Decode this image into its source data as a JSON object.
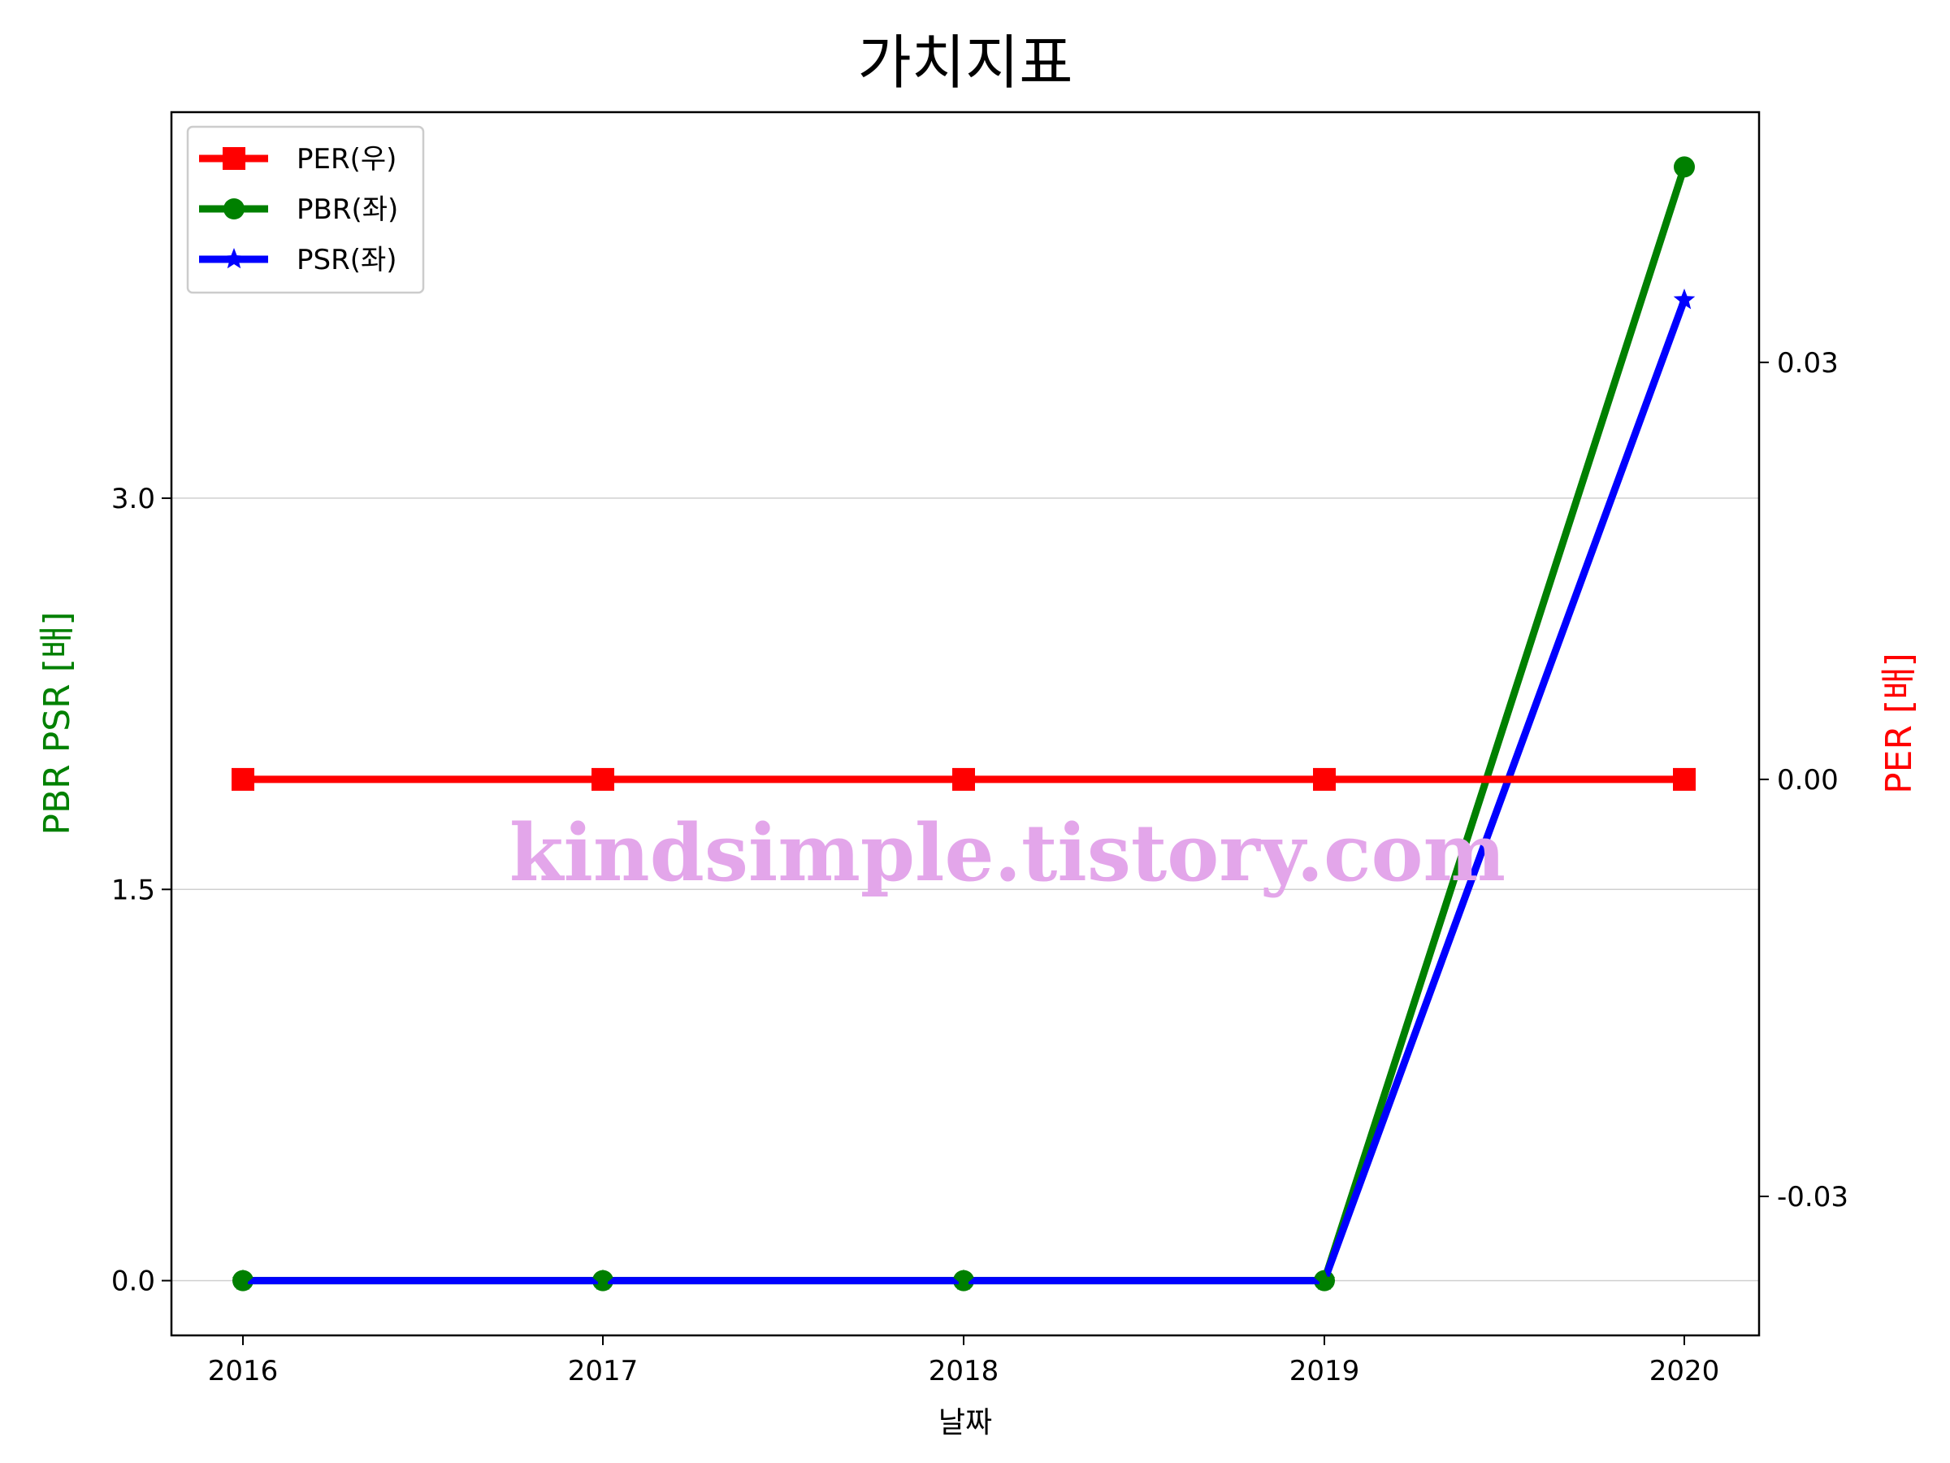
{
  "chart_data": {
    "type": "line",
    "title": "가치지표",
    "xlabel": "날짜",
    "ylabel_left": "PBR PSR [배]",
    "ylabel_right": "PER [배]",
    "categories": [
      "2016",
      "2017",
      "2018",
      "2019",
      "2020"
    ],
    "left_axis": {
      "ylim": [
        -0.21,
        4.48
      ],
      "ticks": [
        0.0,
        1.5,
        3.0
      ],
      "tick_labels": [
        "0.0",
        "1.5",
        "3.0"
      ],
      "label_color": "#008000"
    },
    "right_axis": {
      "ylim": [
        -0.04,
        0.048
      ],
      "ticks": [
        -0.03,
        0.0,
        0.03
      ],
      "tick_labels": [
        "-0.03",
        "0.00",
        "0.03"
      ],
      "label_color": "#ff0000"
    },
    "grid": "horizontal (left axis)",
    "legend_position": "upper-left",
    "series": [
      {
        "name": "PER(우)",
        "axis": "right",
        "color": "#ff0000",
        "marker": "square",
        "values": [
          0,
          0,
          0,
          0,
          0
        ]
      },
      {
        "name": "PBR(좌)",
        "axis": "left",
        "color": "#008000",
        "marker": "circle",
        "values": [
          0,
          0,
          0,
          0,
          4.27
        ]
      },
      {
        "name": "PSR(좌)",
        "axis": "left",
        "color": "#0000ff",
        "marker": "star",
        "values": [
          0,
          0,
          0,
          0,
          3.76
        ]
      }
    ],
    "watermark": "kindsimple.tistory.com"
  }
}
